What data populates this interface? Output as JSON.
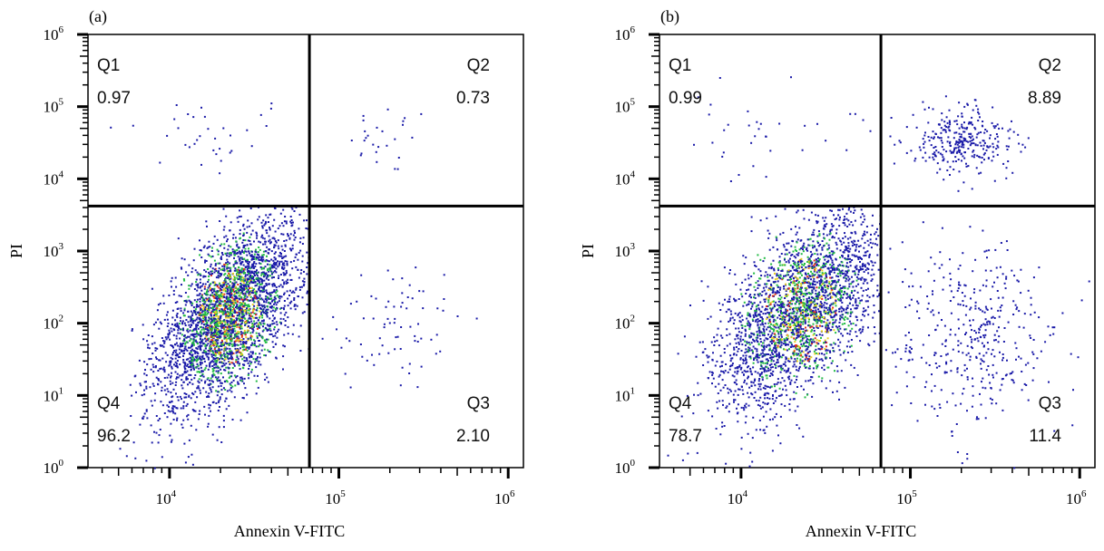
{
  "chart_data": [
    {
      "type": "scatter",
      "panel_label": "(a)",
      "xlabel": "Annexin V-FITC",
      "ylabel": "PI",
      "xscale": "log",
      "yscale": "log",
      "xlim": [
        3300,
        1230000
      ],
      "ylim": [
        1,
        1000000
      ],
      "xticks": [
        {
          "base": "10",
          "exp": "4",
          "value": 10000
        },
        {
          "base": "10",
          "exp": "5",
          "value": 100000
        },
        {
          "base": "10",
          "exp": "6",
          "value": 1000000
        }
      ],
      "yticks": [
        {
          "base": "10",
          "exp": "0",
          "value": 1
        },
        {
          "base": "10",
          "exp": "1",
          "value": 10
        },
        {
          "base": "10",
          "exp": "2",
          "value": 100
        },
        {
          "base": "10",
          "exp": "3",
          "value": 1000
        },
        {
          "base": "10",
          "exp": "4",
          "value": 10000
        },
        {
          "base": "10",
          "exp": "5",
          "value": 100000
        },
        {
          "base": "10",
          "exp": "6",
          "value": 1000000
        }
      ],
      "gate": {
        "x": 67000,
        "y": 4200
      },
      "quadrants": [
        {
          "name": "Q1",
          "value": "0.97",
          "pos": "top-left"
        },
        {
          "name": "Q2",
          "value": "0.73",
          "pos": "top-right"
        },
        {
          "name": "Q3",
          "value": "2.10",
          "pos": "bottom-right"
        },
        {
          "name": "Q4",
          "value": "96.2",
          "pos": "bottom-left"
        }
      ],
      "colors": {
        "low": "#1a1aa8",
        "mid": "#22bb44",
        "high": "#e8d020",
        "peak": "#e03020",
        "gate": "#000000"
      }
    },
    {
      "type": "scatter",
      "panel_label": "(b)",
      "xlabel": "Annexin V-FITC",
      "ylabel": "PI",
      "xscale": "log",
      "yscale": "log",
      "xlim": [
        3300,
        1230000
      ],
      "ylim": [
        1,
        1000000
      ],
      "xticks": [
        {
          "base": "10",
          "exp": "4",
          "value": 10000
        },
        {
          "base": "10",
          "exp": "5",
          "value": 100000
        },
        {
          "base": "10",
          "exp": "6",
          "value": 1000000
        }
      ],
      "yticks": [
        {
          "base": "10",
          "exp": "0",
          "value": 1
        },
        {
          "base": "10",
          "exp": "1",
          "value": 10
        },
        {
          "base": "10",
          "exp": "2",
          "value": 100
        },
        {
          "base": "10",
          "exp": "3",
          "value": 1000
        },
        {
          "base": "10",
          "exp": "4",
          "value": 10000
        },
        {
          "base": "10",
          "exp": "5",
          "value": 100000
        },
        {
          "base": "10",
          "exp": "6",
          "value": 1000000
        }
      ],
      "gate": {
        "x": 67000,
        "y": 4200
      },
      "quadrants": [
        {
          "name": "Q1",
          "value": "0.99",
          "pos": "top-left"
        },
        {
          "name": "Q2",
          "value": "8.89",
          "pos": "top-right"
        },
        {
          "name": "Q3",
          "value": "11.4",
          "pos": "bottom-right"
        },
        {
          "name": "Q4",
          "value": "78.7",
          "pos": "bottom-left"
        }
      ],
      "colors": {
        "low": "#1a1aa8",
        "mid": "#22bb44",
        "high": "#e8d020",
        "peak": "#e03020",
        "gate": "#000000"
      }
    }
  ]
}
